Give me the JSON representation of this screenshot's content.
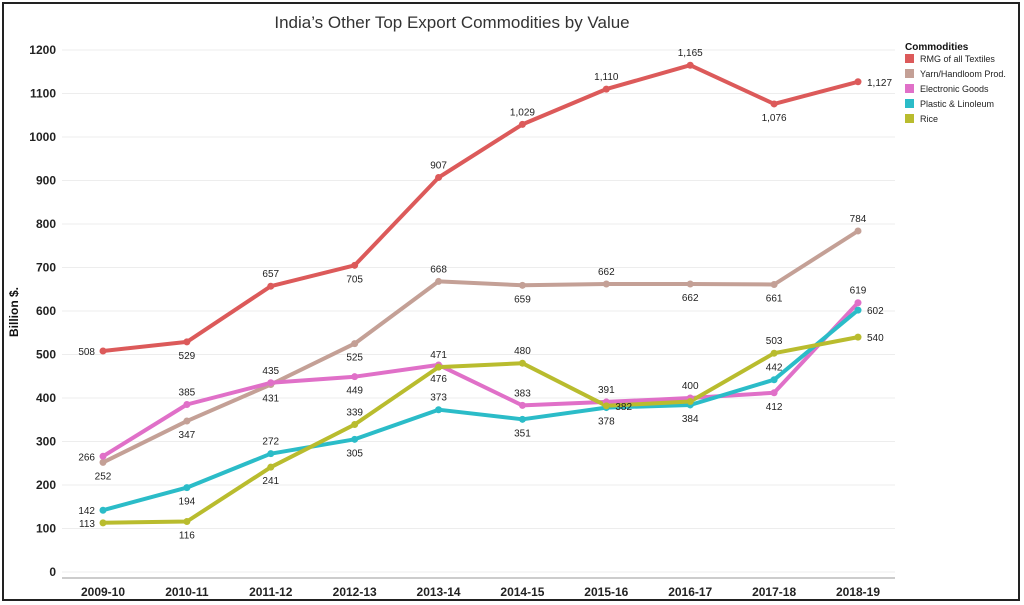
{
  "chart_data": {
    "type": "line",
    "title": "India’s Other Top Export Commodities by Value",
    "xlabel": "",
    "ylabel": "Billion $.",
    "categories": [
      "2009-10",
      "2010-11",
      "2011-12",
      "2012-13",
      "2013-14",
      "2014-15",
      "2015-16",
      "2016-17",
      "2017-18",
      "2018-19"
    ],
    "ylim": [
      0,
      1200
    ],
    "yticks": [
      0,
      100,
      200,
      300,
      400,
      500,
      600,
      700,
      800,
      900,
      1000,
      1100,
      1200
    ],
    "legend_title": "Commodities",
    "legend_position": "top-right",
    "series": [
      {
        "name": "RMG of all Textiles",
        "color": "#dc5a5a",
        "values": [
          508,
          529,
          657,
          705,
          907,
          1029,
          1110,
          1165,
          1076,
          1127
        ],
        "labels": [
          "508",
          "529",
          "657",
          "705",
          "907",
          "1,029",
          "1,110",
          "1,165",
          "1,076",
          "1,127"
        ]
      },
      {
        "name": "Yarn/Handloom Prod.",
        "color": "#c4a096",
        "values": [
          252,
          347,
          431,
          525,
          668,
          659,
          662,
          662,
          661,
          784
        ],
        "labels": [
          "252",
          "347",
          "431",
          "525",
          "668",
          "659",
          "662",
          "662",
          "661",
          "784"
        ]
      },
      {
        "name": "Electronic Goods",
        "color": "#e070c8",
        "values": [
          266,
          385,
          435,
          449,
          476,
          383,
          391,
          400,
          412,
          619
        ],
        "labels": [
          "266",
          "385",
          "435",
          "449",
          "476",
          "383",
          "391",
          "400",
          "412",
          "619"
        ]
      },
      {
        "name": "Plastic & Linoleum",
        "color": "#2bbcc8",
        "values": [
          142,
          194,
          272,
          305,
          373,
          351,
          378,
          384,
          442,
          602
        ],
        "labels": [
          "142",
          "194",
          "272",
          "305",
          "373",
          "351",
          "378",
          "384",
          "442",
          "602"
        ]
      },
      {
        "name": "Rice",
        "color": "#b9bc2e",
        "values": [
          113,
          116,
          241,
          339,
          471,
          480,
          382,
          392,
          503,
          540
        ],
        "labels": [
          "113",
          "116",
          "241",
          "339",
          "471",
          "480",
          "382",
          "",
          "503",
          "540"
        ]
      }
    ]
  }
}
